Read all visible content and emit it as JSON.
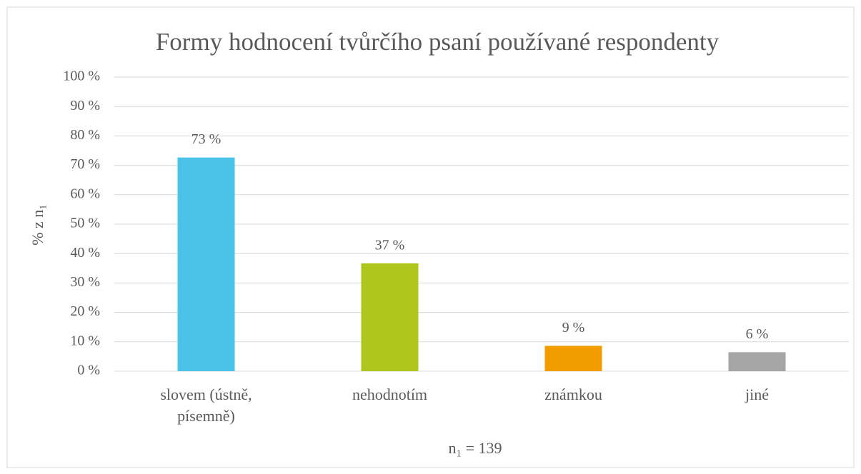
{
  "chart_data": {
    "type": "bar",
    "title": "Formy hodnocení tvůrčího psaní používané respondenty",
    "y_label": "% z n₁",
    "x_label": "n₁ = 139",
    "categories": [
      "slovem (ústně, písemně)",
      "nehodnotím",
      "známkou",
      "jiné"
    ],
    "values": [
      72.66,
      36.69,
      8.63,
      6.47
    ],
    "value_labels": [
      "73 %",
      "37 %",
      "9 %",
      "6 %"
    ],
    "colors": [
      "#4bc3e8",
      "#afc71c",
      "#f39c00",
      "#a5a5a5"
    ],
    "ylim": [
      0,
      100
    ],
    "yticks": [
      {
        "value": 0,
        "label": "0 %"
      },
      {
        "value": 10,
        "label": "10 %"
      },
      {
        "value": 20,
        "label": "20 %"
      },
      {
        "value": 30,
        "label": "30 %"
      },
      {
        "value": 40,
        "label": "40 %"
      },
      {
        "value": 50,
        "label": "50 %"
      },
      {
        "value": 60,
        "label": "60 %"
      },
      {
        "value": 70,
        "label": "70 %"
      },
      {
        "value": 80,
        "label": "80 %"
      },
      {
        "value": 90,
        "label": "90 %"
      },
      {
        "value": 100,
        "label": "100 %"
      }
    ],
    "grid": true
  }
}
